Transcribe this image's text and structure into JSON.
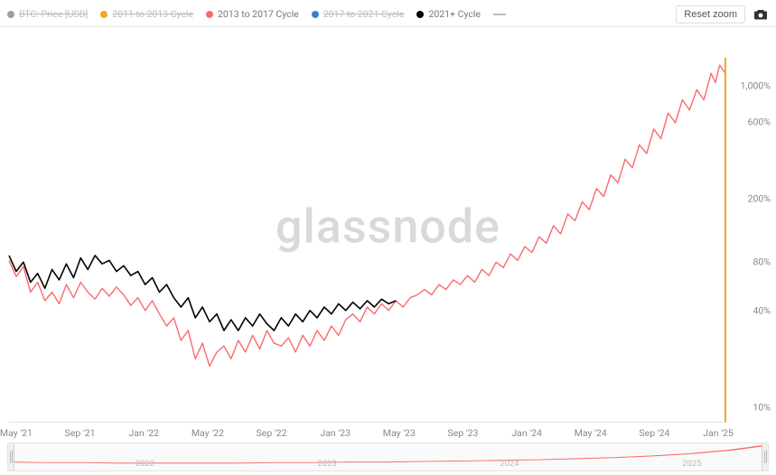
{
  "watermark": "glassnode",
  "header": {
    "reset_label": "Reset zoom",
    "legend": [
      {
        "label": "BTC: Price [USD]",
        "color": "#9e9e9e",
        "strike": true,
        "swatch": "circle"
      },
      {
        "label": "2011 to 2013 Cycle",
        "color": "#f5a623",
        "strike": true,
        "swatch": "circle"
      },
      {
        "label": "2013 to 2017 Cycle",
        "color": "#fa6b6b",
        "strike": false,
        "swatch": "circle"
      },
      {
        "label": "2017 to 2021 Cycle",
        "color": "#3b7dd8",
        "strike": true,
        "swatch": "circle"
      },
      {
        "label": "2021+ Cycle",
        "color": "#000000",
        "strike": false,
        "swatch": "circle"
      },
      {
        "label": "",
        "color": "#bbbbbb",
        "strike": false,
        "swatch": "line"
      }
    ]
  },
  "chart": {
    "type": "line",
    "yscale": "log",
    "y_min_pct": 8,
    "y_max_pct": 1500,
    "y_ticks": [
      {
        "value": 1000,
        "label": "1,000%"
      },
      {
        "value": 600,
        "label": "600%"
      },
      {
        "value": 200,
        "label": "200%"
      },
      {
        "value": 80,
        "label": "80%"
      },
      {
        "value": 40,
        "label": "40%"
      },
      {
        "value": 10,
        "label": "10%"
      }
    ],
    "x_labels": [
      "May '21",
      "Sep '21",
      "Jan '22",
      "May '22",
      "Sep '22",
      "Jan '23",
      "May '23",
      "Sep '23",
      "Jan '24",
      "May '24",
      "Sep '24",
      "Jan '25"
    ],
    "x_range_months": 50,
    "right_axis_accent_color": "#f5a623",
    "background_color": "#ffffff",
    "grid_color": "#f2f2f2",
    "baseline_color": "#e0e0e0",
    "line_width": 1.5,
    "series": [
      {
        "name": "2013 to 2017 Cycle",
        "color": "#fa6b6b",
        "stroke_width": 1.4,
        "data": [
          [
            0,
            82
          ],
          [
            0.5,
            65
          ],
          [
            1,
            75
          ],
          [
            1.5,
            52
          ],
          [
            2,
            60
          ],
          [
            2.5,
            46
          ],
          [
            3,
            52
          ],
          [
            3.5,
            44
          ],
          [
            4,
            58
          ],
          [
            4.5,
            48
          ],
          [
            5,
            60
          ],
          [
            5.5,
            52
          ],
          [
            6,
            47
          ],
          [
            6.5,
            55
          ],
          [
            7,
            49
          ],
          [
            7.5,
            56
          ],
          [
            8,
            50
          ],
          [
            8.5,
            43
          ],
          [
            9,
            48
          ],
          [
            9.5,
            40
          ],
          [
            10,
            46
          ],
          [
            10.5,
            38
          ],
          [
            11,
            32
          ],
          [
            11.5,
            36
          ],
          [
            12,
            26
          ],
          [
            12.5,
            30
          ],
          [
            13,
            20
          ],
          [
            13.5,
            25
          ],
          [
            14,
            18
          ],
          [
            14.5,
            22
          ],
          [
            15,
            24
          ],
          [
            15.5,
            20
          ],
          [
            16,
            26
          ],
          [
            16.5,
            22
          ],
          [
            17,
            28
          ],
          [
            17.5,
            23
          ],
          [
            18,
            30
          ],
          [
            18.5,
            25
          ],
          [
            19,
            24
          ],
          [
            19.5,
            27
          ],
          [
            20,
            22
          ],
          [
            20.5,
            28
          ],
          [
            21,
            24
          ],
          [
            21.5,
            30
          ],
          [
            22,
            26
          ],
          [
            22.5,
            32
          ],
          [
            23,
            28
          ],
          [
            23.5,
            35
          ],
          [
            24,
            38
          ],
          [
            24.5,
            34
          ],
          [
            25,
            42
          ],
          [
            25.5,
            38
          ],
          [
            26,
            44
          ],
          [
            26.5,
            40
          ],
          [
            27,
            46
          ],
          [
            27.5,
            42
          ],
          [
            28,
            48
          ],
          [
            28.5,
            50
          ],
          [
            29,
            54
          ],
          [
            29.5,
            50
          ],
          [
            30,
            58
          ],
          [
            30.5,
            54
          ],
          [
            31,
            62
          ],
          [
            31.5,
            58
          ],
          [
            32,
            66
          ],
          [
            32.5,
            60
          ],
          [
            33,
            72
          ],
          [
            33.5,
            66
          ],
          [
            34,
            80
          ],
          [
            34.5,
            74
          ],
          [
            35,
            90
          ],
          [
            35.5,
            82
          ],
          [
            36,
            100
          ],
          [
            36.5,
            92
          ],
          [
            37,
            115
          ],
          [
            37.5,
            105
          ],
          [
            38,
            135
          ],
          [
            38.5,
            120
          ],
          [
            39,
            160
          ],
          [
            39.5,
            145
          ],
          [
            40,
            190
          ],
          [
            40.5,
            170
          ],
          [
            41,
            230
          ],
          [
            41.5,
            205
          ],
          [
            42,
            280
          ],
          [
            42.5,
            250
          ],
          [
            43,
            350
          ],
          [
            43.5,
            310
          ],
          [
            44,
            430
          ],
          [
            44.5,
            380
          ],
          [
            45,
            540
          ],
          [
            45.5,
            470
          ],
          [
            46,
            680
          ],
          [
            46.5,
            590
          ],
          [
            47,
            820
          ],
          [
            47.5,
            710
          ],
          [
            48,
            950
          ],
          [
            48.5,
            820
          ],
          [
            49,
            1200
          ],
          [
            49.3,
            1050
          ],
          [
            49.6,
            1350
          ],
          [
            50,
            1200
          ]
        ]
      },
      {
        "name": "2021+ Cycle",
        "color": "#000000",
        "stroke_width": 1.6,
        "data": [
          [
            0,
            88
          ],
          [
            0.5,
            70
          ],
          [
            1,
            80
          ],
          [
            1.5,
            60
          ],
          [
            2,
            68
          ],
          [
            2.5,
            55
          ],
          [
            3,
            72
          ],
          [
            3.5,
            62
          ],
          [
            4,
            78
          ],
          [
            4.5,
            64
          ],
          [
            5,
            85
          ],
          [
            5.5,
            72
          ],
          [
            6,
            88
          ],
          [
            6.5,
            78
          ],
          [
            7,
            82
          ],
          [
            7.5,
            70
          ],
          [
            8,
            76
          ],
          [
            8.5,
            66
          ],
          [
            9,
            70
          ],
          [
            9.5,
            58
          ],
          [
            10,
            64
          ],
          [
            10.5,
            52
          ],
          [
            11,
            58
          ],
          [
            11.5,
            48
          ],
          [
            12,
            42
          ],
          [
            12.5,
            48
          ],
          [
            13,
            36
          ],
          [
            13.5,
            42
          ],
          [
            14,
            34
          ],
          [
            14.5,
            38
          ],
          [
            15,
            30
          ],
          [
            15.5,
            35
          ],
          [
            16,
            30
          ],
          [
            16.5,
            36
          ],
          [
            17,
            32
          ],
          [
            17.5,
            38
          ],
          [
            18,
            33
          ],
          [
            18.5,
            30
          ],
          [
            19,
            36
          ],
          [
            19.5,
            32
          ],
          [
            20,
            38
          ],
          [
            20.5,
            34
          ],
          [
            21,
            40
          ],
          [
            21.5,
            36
          ],
          [
            22,
            42
          ],
          [
            22.5,
            38
          ],
          [
            23,
            44
          ],
          [
            23.5,
            40
          ],
          [
            24,
            45
          ],
          [
            24.5,
            41
          ],
          [
            25,
            46
          ],
          [
            25.5,
            42
          ],
          [
            26,
            47
          ],
          [
            26.5,
            44
          ],
          [
            27,
            46
          ]
        ]
      }
    ]
  },
  "navigator": {
    "years": [
      "2022",
      "2023",
      "2024",
      "2025"
    ],
    "series_color": "#fa6b6b",
    "handle_color": "#d0d0d0",
    "background": "#fafafa",
    "data": [
      [
        0,
        12
      ],
      [
        5,
        11
      ],
      [
        10,
        11
      ],
      [
        15,
        10
      ],
      [
        20,
        10
      ],
      [
        25,
        10
      ],
      [
        30,
        10
      ],
      [
        35,
        11
      ],
      [
        40,
        11
      ],
      [
        45,
        12
      ],
      [
        50,
        12
      ],
      [
        55,
        13
      ],
      [
        60,
        14
      ],
      [
        65,
        15
      ],
      [
        70,
        16
      ],
      [
        75,
        18
      ],
      [
        80,
        20
      ],
      [
        85,
        23
      ],
      [
        90,
        27
      ],
      [
        95,
        33
      ],
      [
        100,
        42
      ]
    ]
  }
}
